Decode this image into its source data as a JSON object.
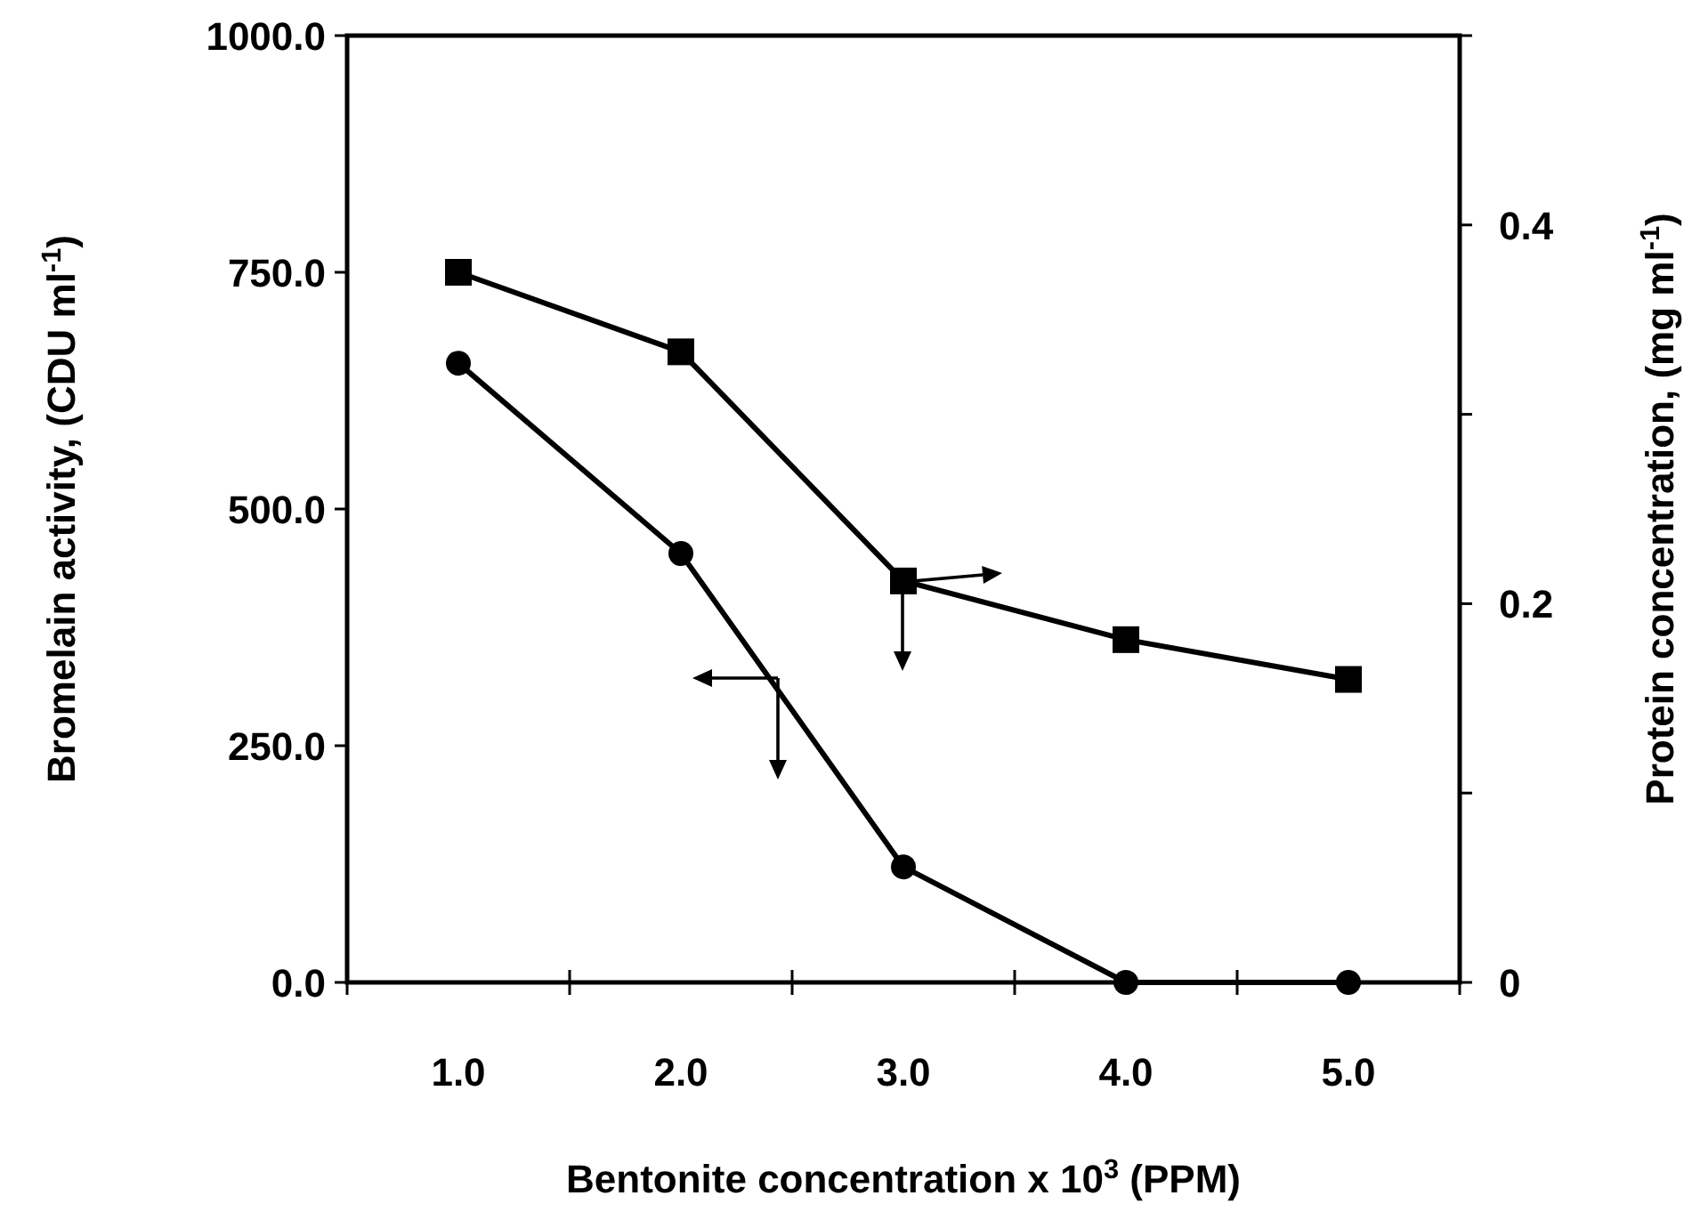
{
  "chart_data": {
    "type": "line",
    "xlabel": "Bentonite concentration x 10$^{3}$ (PPM)",
    "ylabel": "Bromelain activity, (CDU ml$^{-1}$)",
    "y2label": "Protein concentration, (mg ml$^{-1}$)",
    "x": [
      1,
      2,
      3,
      4,
      5
    ],
    "xlim": [
      0.5,
      5.5
    ],
    "xticks": [
      {
        "value": 0.5,
        "label": null
      },
      {
        "value": 1,
        "label": "1.0"
      },
      {
        "value": 1.5,
        "label": null
      },
      {
        "value": 2,
        "label": "2.0"
      },
      {
        "value": 2.5,
        "label": null
      },
      {
        "value": 3,
        "label": "3.0"
      },
      {
        "value": 3.5,
        "label": null
      },
      {
        "value": 4,
        "label": "4.0"
      },
      {
        "value": 4.5,
        "label": null
      },
      {
        "value": 5,
        "label": "5.0"
      },
      {
        "value": 5.5,
        "label": null
      }
    ],
    "ylim": [
      0,
      1000
    ],
    "yticks": [
      {
        "value": 0,
        "label": "0.0"
      },
      {
        "value": 250,
        "label": "250.0"
      },
      {
        "value": 500,
        "label": "500.0"
      },
      {
        "value": 750,
        "label": "750.0"
      },
      {
        "value": 1000,
        "label": "1000.0"
      }
    ],
    "y2lim": [
      0,
      0.5
    ],
    "y2ticks": [
      0,
      {
        "value": 0.1,
        "label": null
      },
      0.2,
      {
        "value": 0.3,
        "label": null
      },
      0.4,
      {
        "value": 0.5,
        "label": null
      }
    ],
    "series": [
      {
        "color": "#000000",
        "marker": "square",
        "axis": "y2",
        "values": [
          0.375,
          0.333,
          0.212,
          0.181,
          0.16
        ]
      },
      {
        "color": "#000000",
        "marker": "circle",
        "values": [
          654,
          453,
          122,
          0,
          0
        ]
      }
    ],
    "grid": false
  }
}
